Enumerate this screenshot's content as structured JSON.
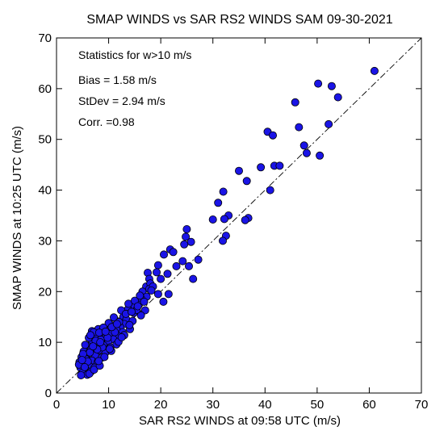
{
  "chart_data": {
    "type": "scatter",
    "title": "SMAP WINDS vs SAR RS2 WINDS  SAM  09-30-2021",
    "xlabel": "SAR RS2 WINDS at 09:58 UTC (m/s)",
    "ylabel": "SMAP WINDS at 10:25 UTC (m/s)",
    "xlim": [
      0,
      70
    ],
    "ylim": [
      0,
      70
    ],
    "xticks": [
      "0",
      "10",
      "20",
      "30",
      "40",
      "50",
      "60",
      "70"
    ],
    "yticks": [
      "0",
      "10",
      "20",
      "30",
      "40",
      "50",
      "60",
      "70"
    ],
    "grid": false,
    "reference_line": "y = x (dash-dot)",
    "marker_color": "#1a14e6",
    "annotations": [
      "Statistics for w>10 m/s",
      "Bias = 1.58 m/s",
      "StDev = 2.94 m/s",
      "Corr. =0.98"
    ],
    "points": [
      [
        61.0,
        63.5
      ],
      [
        50.2,
        61.0
      ],
      [
        52.8,
        60.5
      ],
      [
        54.0,
        58.3
      ],
      [
        45.8,
        57.3
      ],
      [
        40.5,
        51.5
      ],
      [
        41.5,
        50.8
      ],
      [
        46.5,
        52.4
      ],
      [
        52.2,
        53.0
      ],
      [
        47.5,
        48.8
      ],
      [
        48.0,
        47.3
      ],
      [
        50.5,
        46.8
      ],
      [
        41.8,
        44.8
      ],
      [
        42.8,
        44.8
      ],
      [
        39.2,
        44.5
      ],
      [
        41.0,
        40.0
      ],
      [
        35.0,
        43.8
      ],
      [
        36.5,
        41.8
      ],
      [
        32.0,
        39.7
      ],
      [
        31.0,
        37.5
      ],
      [
        33.0,
        35.0
      ],
      [
        32.2,
        34.3
      ],
      [
        36.8,
        34.5
      ],
      [
        36.2,
        34.1
      ],
      [
        30.0,
        34.2
      ],
      [
        25.0,
        32.3
      ],
      [
        32.5,
        31.0
      ],
      [
        31.9,
        30.0
      ],
      [
        24.8,
        30.8
      ],
      [
        25.8,
        29.8
      ],
      [
        24.5,
        29.3
      ],
      [
        21.8,
        28.3
      ],
      [
        22.4,
        27.8
      ],
      [
        20.6,
        27.3
      ],
      [
        27.2,
        26.3
      ],
      [
        24.2,
        26.0
      ],
      [
        25.4,
        25.0
      ],
      [
        23.0,
        25.0
      ],
      [
        19.5,
        25.2
      ],
      [
        17.5,
        23.7
      ],
      [
        19.2,
        23.8
      ],
      [
        21.3,
        23.5
      ],
      [
        17.8,
        22.5
      ],
      [
        26.2,
        22.5
      ],
      [
        17.2,
        21.0
      ],
      [
        18.0,
        21.6
      ],
      [
        17.8,
        20.5
      ],
      [
        16.5,
        20.0
      ],
      [
        19.5,
        19.5
      ],
      [
        21.5,
        19.5
      ],
      [
        17.3,
        19.0
      ],
      [
        20.5,
        18.0
      ],
      [
        16.2,
        18.7
      ],
      [
        14.5,
        17.0
      ],
      [
        15.8,
        17.4
      ],
      [
        17.0,
        16.3
      ],
      [
        13.7,
        16.5
      ],
      [
        14.8,
        15.8
      ],
      [
        16.2,
        15.3
      ],
      [
        12.8,
        15.0
      ],
      [
        13.4,
        14.5
      ],
      [
        14.6,
        14.2
      ],
      [
        11.8,
        14.1
      ],
      [
        13.0,
        13.6
      ],
      [
        12.2,
        13.0
      ],
      [
        14.1,
        12.6
      ],
      [
        10.8,
        13.3
      ],
      [
        11.5,
        12.5
      ],
      [
        12.7,
        12.0
      ],
      [
        9.6,
        12.3
      ],
      [
        10.5,
        11.7
      ],
      [
        11.8,
        11.2
      ],
      [
        8.6,
        11.6
      ],
      [
        9.5,
        11.0
      ],
      [
        10.9,
        10.6
      ],
      [
        7.5,
        11.0
      ],
      [
        8.5,
        10.5
      ],
      [
        9.9,
        10.0
      ],
      [
        11.5,
        9.6
      ],
      [
        6.8,
        10.2
      ],
      [
        7.7,
        9.6
      ],
      [
        9.0,
        9.4
      ],
      [
        10.3,
        9.0
      ],
      [
        5.9,
        9.3
      ],
      [
        6.7,
        8.7
      ],
      [
        8.1,
        8.4
      ],
      [
        9.4,
        8.0
      ],
      [
        5.2,
        8.2
      ],
      [
        6.0,
        7.7
      ],
      [
        7.4,
        7.4
      ],
      [
        8.7,
        7.0
      ],
      [
        4.8,
        7.1
      ],
      [
        5.6,
        6.7
      ],
      [
        6.8,
        6.4
      ],
      [
        7.9,
        6.1
      ],
      [
        4.4,
        6.1
      ],
      [
        5.3,
        5.7
      ],
      [
        6.3,
        5.3
      ],
      [
        7.3,
        5.0
      ],
      [
        4.6,
        5.0
      ],
      [
        5.7,
        4.5
      ],
      [
        6.6,
        4.2
      ],
      [
        5.0,
        4.0
      ],
      [
        5.9,
        3.6
      ],
      [
        4.7,
        3.5
      ],
      [
        6.3,
        3.8
      ],
      [
        7.2,
        4.6
      ],
      [
        8.3,
        5.4
      ],
      [
        6.8,
        12.2
      ],
      [
        8.0,
        12.6
      ],
      [
        10.0,
        13.8
      ],
      [
        11.0,
        14.9
      ],
      [
        12.4,
        16.3
      ],
      [
        13.8,
        17.6
      ],
      [
        15.0,
        18.2
      ],
      [
        15.4,
        16.4
      ],
      [
        13.0,
        11.4
      ],
      [
        11.9,
        10.1
      ],
      [
        10.5,
        8.3
      ],
      [
        9.2,
        7.1
      ],
      [
        8.1,
        6.3
      ],
      [
        6.2,
        10.9
      ],
      [
        7.1,
        12.0
      ],
      [
        9.0,
        12.9
      ],
      [
        16.0,
        19.2
      ],
      [
        18.5,
        21.0
      ],
      [
        20.0,
        22.5
      ],
      [
        14.0,
        13.4
      ],
      [
        12.5,
        11.0
      ],
      [
        10.2,
        8.7
      ],
      [
        8.8,
        9.0
      ],
      [
        7.8,
        8.6
      ],
      [
        6.4,
        8.0
      ],
      [
        5.1,
        7.7
      ],
      [
        4.3,
        5.6
      ],
      [
        5.5,
        9.5
      ],
      [
        6.5,
        11.4
      ],
      [
        7.5,
        10.3
      ],
      [
        8.2,
        11.9
      ],
      [
        9.8,
        10.9
      ],
      [
        11.2,
        12.0
      ],
      [
        12.0,
        14.0
      ],
      [
        13.3,
        15.6
      ],
      [
        14.4,
        16.0
      ],
      [
        15.6,
        17.1
      ],
      [
        16.8,
        18.0
      ],
      [
        18.2,
        20.2
      ],
      [
        9.4,
        12.1
      ],
      [
        10.6,
        13.0
      ],
      [
        11.6,
        13.6
      ],
      [
        8.4,
        10.0
      ],
      [
        7.0,
        9.2
      ],
      [
        6.0,
        6.2
      ],
      [
        5.4,
        5.1
      ],
      [
        4.9,
        6.5
      ]
    ]
  }
}
